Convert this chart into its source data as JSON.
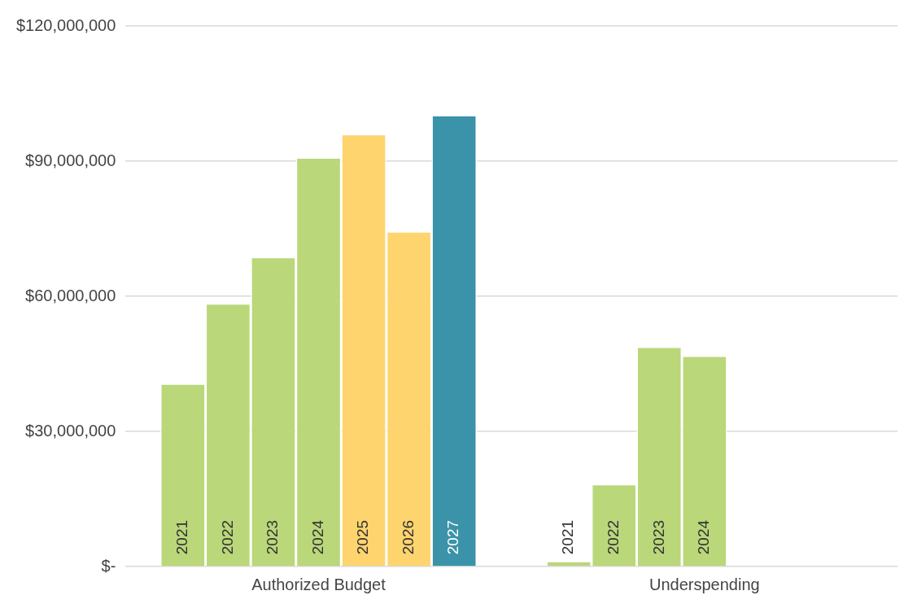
{
  "chart_data": {
    "type": "bar",
    "categories": [
      "Authorized Budget",
      "Underspending"
    ],
    "series": [
      {
        "name": "2021",
        "color": "#bad77a",
        "values": [
          40600000,
          1200000
        ]
      },
      {
        "name": "2022",
        "color": "#bad77a",
        "values": [
          58400000,
          18300000
        ]
      },
      {
        "name": "2023",
        "color": "#bad77a",
        "values": [
          68700000,
          48800000
        ]
      },
      {
        "name": "2024",
        "color": "#bad77a",
        "values": [
          90800000,
          46800000
        ]
      },
      {
        "name": "2025",
        "color": "#fed46e",
        "values": [
          96000000,
          null
        ]
      },
      {
        "name": "2026",
        "color": "#fed46e",
        "values": [
          74400000,
          null
        ]
      },
      {
        "name": "2027",
        "color": "#3a93a9",
        "values": [
          100200000,
          null
        ]
      }
    ],
    "ylim": [
      0,
      120000000
    ],
    "yticks": [
      {
        "value": 0,
        "label": "$-"
      },
      {
        "value": 30000000,
        "label": "$30,000,000"
      },
      {
        "value": 60000000,
        "label": "$60,000,000"
      },
      {
        "value": 90000000,
        "label": "$90,000,000"
      },
      {
        "value": 120000000,
        "label": "$120,000,000"
      }
    ],
    "grid": "y",
    "legend": false
  }
}
